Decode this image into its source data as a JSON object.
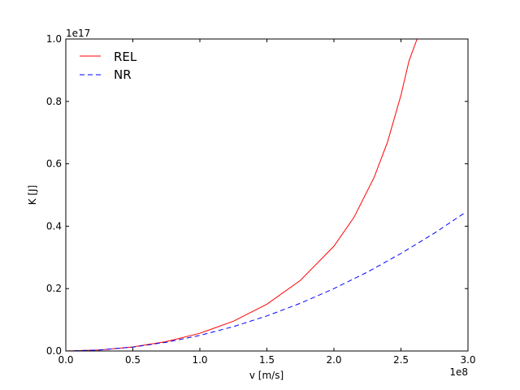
{
  "chart_data": {
    "type": "line",
    "xlabel": "v [m/s]",
    "ylabel": "K [J]",
    "x_offset_label": "1e8",
    "y_offset_label": "1e17",
    "xlim": [
      0,
      3.0
    ],
    "ylim": [
      0,
      1.0
    ],
    "x_ticks": [
      0.0,
      0.5,
      1.0,
      1.5,
      2.0,
      2.5,
      3.0
    ],
    "y_ticks": [
      0.0,
      0.2,
      0.4,
      0.6,
      0.8,
      1.0
    ],
    "x_tick_labels": [
      "0.0",
      "0.5",
      "1.0",
      "1.5",
      "2.0",
      "2.5",
      "3.0"
    ],
    "y_tick_labels": [
      "0.0",
      "0.2",
      "0.4",
      "0.6",
      "0.8",
      "1.0"
    ],
    "legend_position": "top-left",
    "series": [
      {
        "name": "REL",
        "color": "#ff0000",
        "style": "solid",
        "x": [
          0.0,
          0.25,
          0.5,
          0.75,
          1.0,
          1.25,
          1.5,
          1.75,
          2.0,
          2.15,
          2.3,
          2.4,
          2.5,
          2.56,
          2.62,
          2.65
        ],
        "y": [
          0.0,
          0.003,
          0.0129,
          0.0302,
          0.0569,
          0.0955,
          0.1499,
          0.2266,
          0.336,
          0.429,
          0.5567,
          0.67,
          0.82,
          0.93,
          1.0,
          1.0
        ]
      },
      {
        "name": "NR",
        "color": "#0000ff",
        "style": "dashed",
        "x": [
          0.0,
          0.25,
          0.5,
          0.75,
          1.0,
          1.25,
          1.5,
          1.75,
          2.0,
          2.25,
          2.5,
          2.75,
          2.98
        ],
        "y": [
          0.0,
          0.0031,
          0.0125,
          0.0281,
          0.05,
          0.0781,
          0.1125,
          0.1531,
          0.2,
          0.2531,
          0.3125,
          0.3781,
          0.444
        ]
      }
    ]
  }
}
